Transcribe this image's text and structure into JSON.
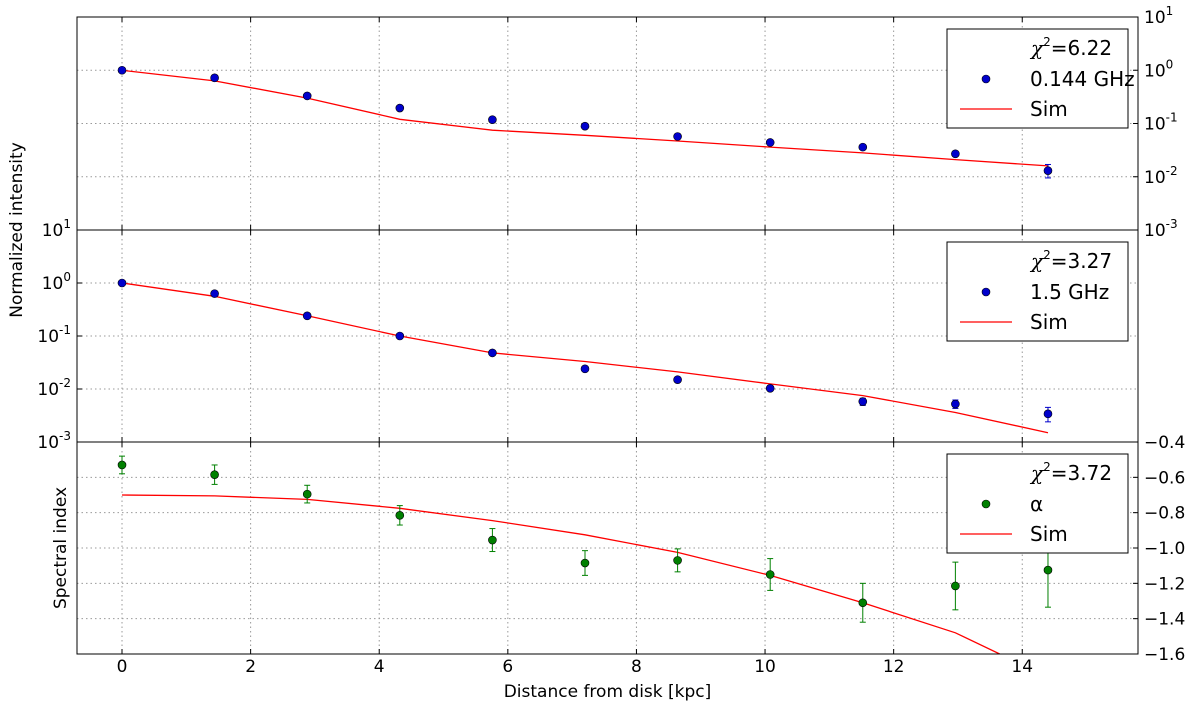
{
  "chart_data": {
    "type": "scatter",
    "x_label": "Distance from disk [kpc]",
    "x_range": [
      -0.7,
      15.8
    ],
    "x_ticks": [
      0,
      2,
      4,
      6,
      8,
      10,
      12,
      14
    ],
    "panels": [
      {
        "id": "top",
        "y_scale": "log",
        "y_range": [
          0.001,
          10
        ],
        "y_ticks_side": "right",
        "y_ticks": [
          {
            "base": "10",
            "exp": "1"
          },
          {
            "base": "10",
            "exp": "0"
          },
          {
            "base": "10",
            "exp": "-1"
          },
          {
            "base": "10",
            "exp": "-2"
          },
          {
            "base": "10",
            "exp": "-3"
          }
        ],
        "chi2_label": "=6.22",
        "legend_position": "top-right",
        "points": {
          "name": "0.144 GHz",
          "color": "#0000cc",
          "x": [
            0,
            1.44,
            2.88,
            4.32,
            5.76,
            7.2,
            8.64,
            10.08,
            11.52,
            12.96,
            14.4
          ],
          "y": [
            1.0,
            0.72,
            0.33,
            0.195,
            0.118,
            0.089,
            0.057,
            0.044,
            0.036,
            0.027,
            0.013
          ],
          "err_low": [
            1.0,
            0.72,
            0.33,
            0.195,
            0.118,
            0.089,
            0.057,
            0.044,
            0.036,
            0.025,
            0.0095
          ],
          "err_high": [
            1.0,
            0.72,
            0.33,
            0.195,
            0.118,
            0.089,
            0.057,
            0.044,
            0.036,
            0.029,
            0.017
          ]
        },
        "sim": {
          "name": "Sim",
          "color": "#ff0000",
          "x": [
            0,
            1.44,
            2.88,
            4.32,
            5.76,
            7.2,
            8.64,
            10.08,
            11.52,
            12.96,
            14.4
          ],
          "y": [
            1.0,
            0.63,
            0.3,
            0.12,
            0.075,
            0.06,
            0.047,
            0.036,
            0.028,
            0.021,
            0.016
          ]
        }
      },
      {
        "id": "middle",
        "y_scale": "log",
        "y_range": [
          0.001,
          10
        ],
        "y_ticks_side": "left",
        "y_ticks": [
          {
            "base": "10",
            "exp": "1"
          },
          {
            "base": "10",
            "exp": "0"
          },
          {
            "base": "10",
            "exp": "-1"
          },
          {
            "base": "10",
            "exp": "-2"
          },
          {
            "base": "10",
            "exp": "-3"
          }
        ],
        "chi2_label": "=3.27",
        "legend_position": "top-right",
        "points": {
          "name": "1.5 GHz",
          "color": "#0000cc",
          "x": [
            0,
            1.44,
            2.88,
            4.32,
            5.76,
            7.2,
            8.64,
            10.08,
            11.52,
            12.96,
            14.4
          ],
          "y": [
            1.0,
            0.63,
            0.24,
            0.1,
            0.048,
            0.024,
            0.015,
            0.0103,
            0.0058,
            0.0052,
            0.0034
          ],
          "err_low": [
            1.0,
            0.63,
            0.24,
            0.1,
            0.048,
            0.024,
            0.015,
            0.0103,
            0.0049,
            0.0043,
            0.0024
          ],
          "err_high": [
            1.0,
            0.63,
            0.24,
            0.1,
            0.048,
            0.024,
            0.015,
            0.0103,
            0.0067,
            0.0062,
            0.0045
          ]
        },
        "sim": {
          "name": "Sim",
          "color": "#ff0000",
          "x": [
            0,
            1.44,
            2.88,
            4.32,
            5.76,
            7.2,
            8.64,
            10.08,
            11.52,
            12.96,
            14.4
          ],
          "y": [
            1.0,
            0.56,
            0.24,
            0.1,
            0.048,
            0.033,
            0.021,
            0.0125,
            0.0075,
            0.0036,
            0.0015
          ]
        }
      },
      {
        "id": "bottom",
        "y_scale": "linear",
        "y_label": "Spectral index",
        "y_range": [
          -1.6,
          -0.4
        ],
        "y_ticks_side": "right",
        "y_ticks": [
          {
            "value": -0.4,
            "label": "−0.4"
          },
          {
            "value": -0.6,
            "label": "−0.6"
          },
          {
            "value": -0.8,
            "label": "−0.8"
          },
          {
            "value": -1.0,
            "label": "−1.0"
          },
          {
            "value": -1.2,
            "label": "−1.2"
          },
          {
            "value": -1.4,
            "label": "−1.4"
          },
          {
            "value": -1.6,
            "label": "−1.6"
          }
        ],
        "chi2_label": "=3.72",
        "legend_position": "top-right",
        "points": {
          "name": "α",
          "color": "#008000",
          "x": [
            0,
            1.44,
            2.88,
            4.32,
            5.76,
            7.2,
            8.64,
            10.08,
            11.52,
            12.96,
            14.4
          ],
          "y": [
            -0.53,
            -0.585,
            -0.695,
            -0.815,
            -0.955,
            -1.085,
            -1.07,
            -1.15,
            -1.31,
            -1.215,
            -1.125
          ],
          "err": [
            0.05,
            0.055,
            0.05,
            0.055,
            0.065,
            0.07,
            0.065,
            0.09,
            0.11,
            0.135,
            0.21
          ]
        },
        "sim": {
          "name": "Sim",
          "color": "#ff0000",
          "x": [
            0,
            1.44,
            2.88,
            4.32,
            5.76,
            7.2,
            8.64,
            10.08,
            11.52,
            12.96,
            13.65
          ],
          "y": [
            -0.7,
            -0.705,
            -0.725,
            -0.775,
            -0.845,
            -0.925,
            -1.025,
            -1.155,
            -1.31,
            -1.48,
            -1.6
          ]
        }
      }
    ],
    "shared_y_label": "Normalized intensity",
    "grid": true,
    "chi2_symbol": "χ",
    "chi2_power": "2"
  }
}
